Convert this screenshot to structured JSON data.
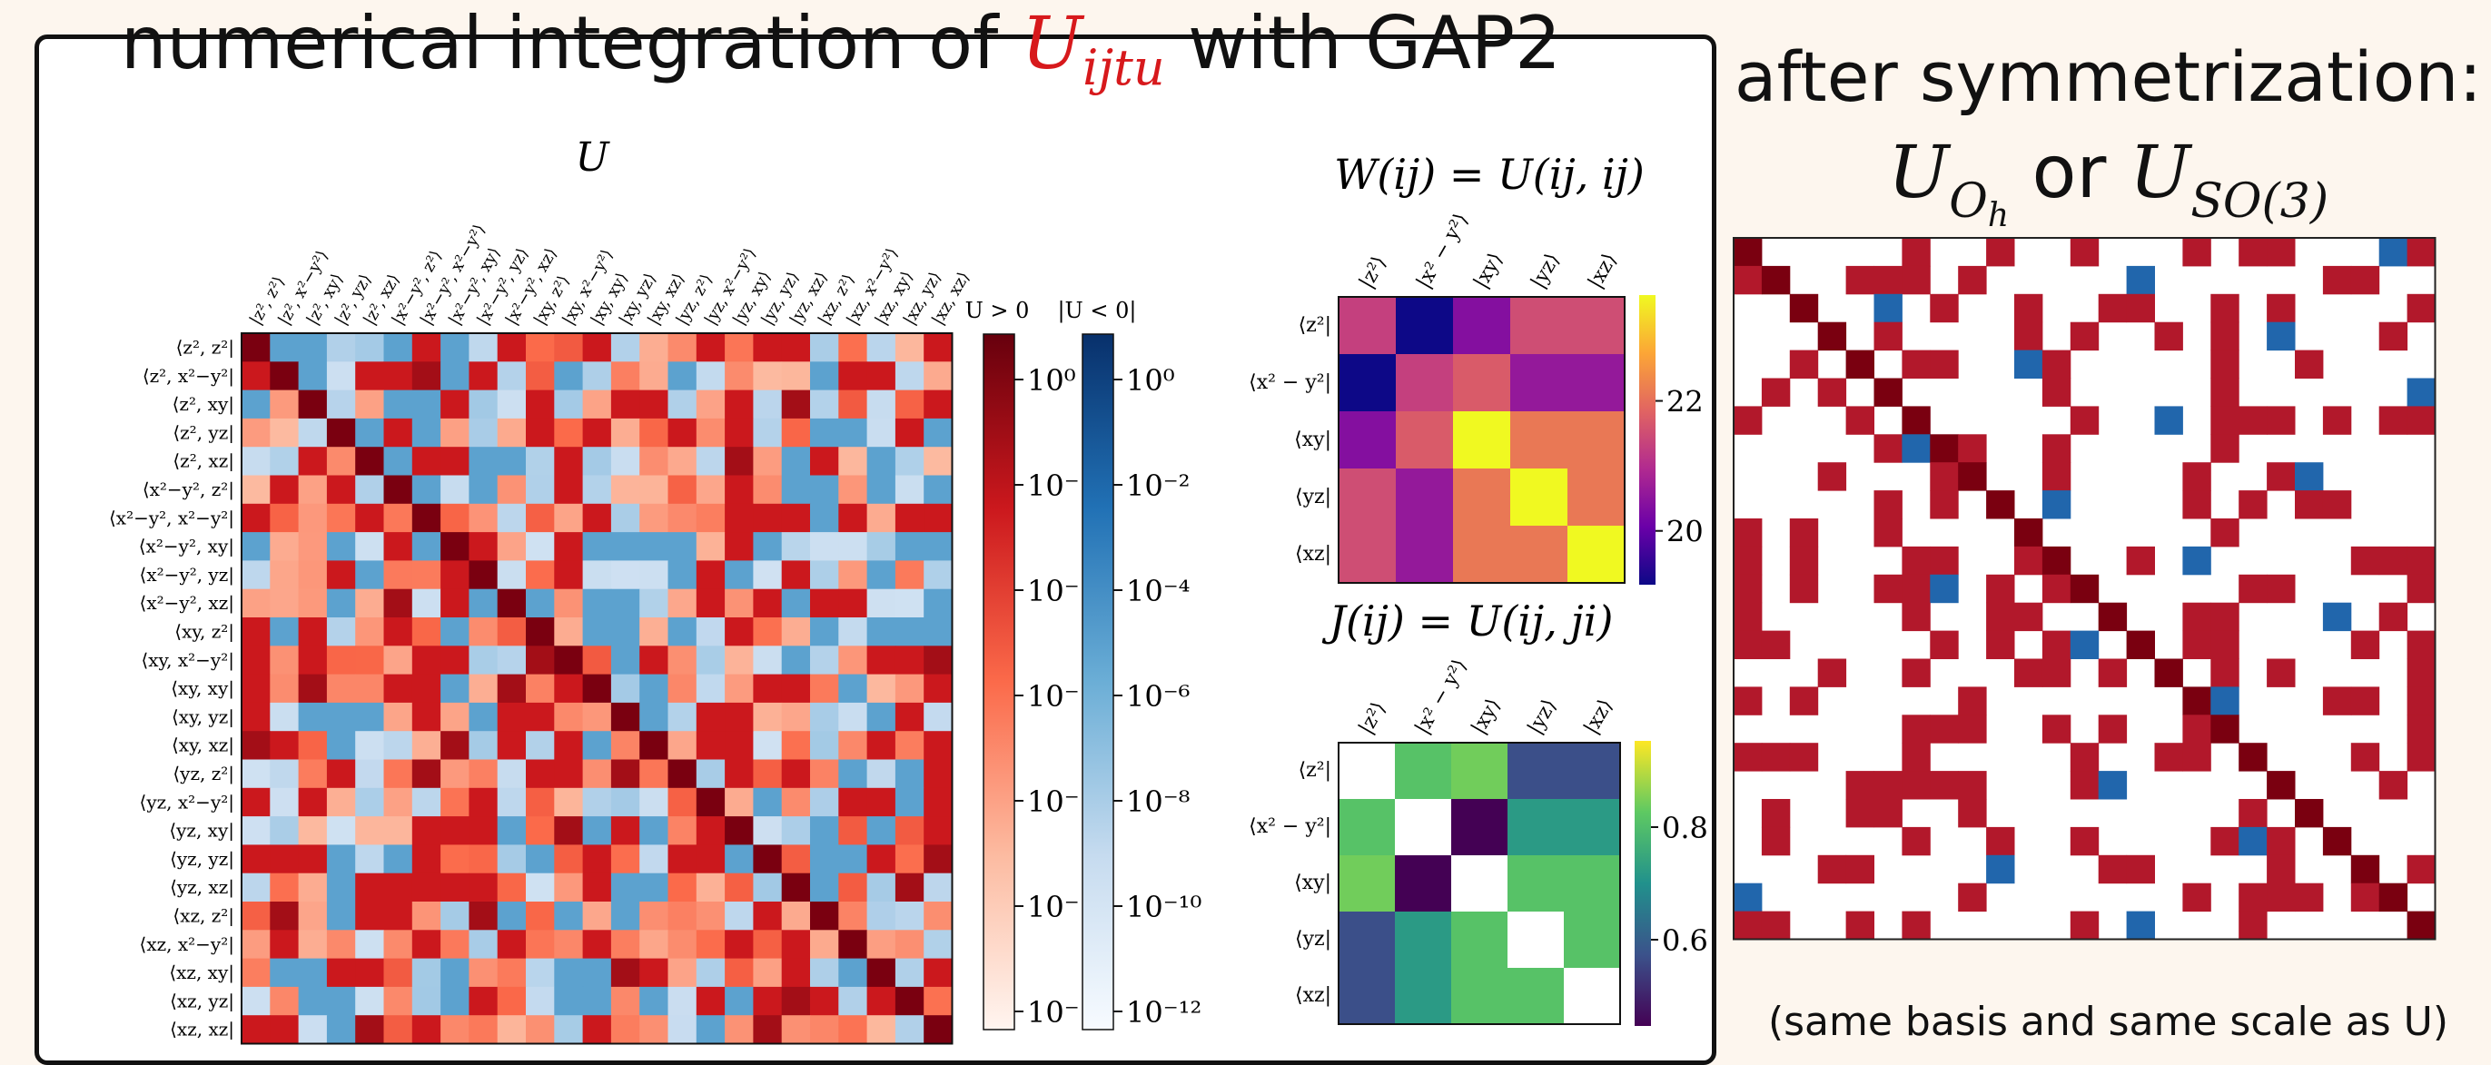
{
  "main_title": {
    "pre": "numerical integration of ",
    "sym": "U",
    "sub": "ijtu",
    "post": " with GAP2"
  },
  "right_title": {
    "line1": "after symmetrization:",
    "u1": "U",
    "sub1": "O",
    "sub1b": "h",
    "or": " or ",
    "u2": "U",
    "sub2": "SO(3)"
  },
  "right_caption": "(same basis and same scale as U)",
  "colors": {
    "pos_dark": "#67000d",
    "pos_mid": "#ef3b2c",
    "neg_dark": "#08306b",
    "neg_mid": "#4292c6"
  },
  "chart_data": [
    {
      "type": "heatmap",
      "title": "U",
      "scale": "log",
      "row_labels": [
        "⟨z², z²|",
        "⟨z², x²−y²|",
        "⟨z², xy|",
        "⟨z², yz|",
        "⟨z², xz|",
        "⟨x²−y², z²|",
        "⟨x²−y², x²−y²|",
        "⟨x²−y², xy|",
        "⟨x²−y², yz|",
        "⟨x²−y², xz|",
        "⟨xy, z²|",
        "⟨xy, x²−y²|",
        "⟨xy, xy|",
        "⟨xy, yz|",
        "⟨xy, xz|",
        "⟨yz, z²|",
        "⟨yz, x²−y²|",
        "⟨yz, xy|",
        "⟨yz, yz|",
        "⟨yz, xz|",
        "⟨xz, z²|",
        "⟨xz, x²−y²|",
        "⟨xz, xy|",
        "⟨xz, yz|",
        "⟨xz, xz|"
      ],
      "col_labels": [
        "|z², z²⟩",
        "|z², x²−y²⟩",
        "|z², xy⟩",
        "|z², yz⟩",
        "|z², xz⟩",
        "|x²−y², z²⟩",
        "|x²−y², x²−y²⟩",
        "|x²−y², xy⟩",
        "|x²−y², yz⟩",
        "|x²−y², xz⟩",
        "|xy, z²⟩",
        "|xy, x²−y²⟩",
        "|xy, xy⟩",
        "|xy, yz⟩",
        "|xy, xz⟩",
        "|yz, z²⟩",
        "|yz, x²−y²⟩",
        "|yz, xy⟩",
        "|yz, yz⟩",
        "|yz, xz⟩",
        "|xz, z²⟩",
        "|xz, x²−y²⟩",
        "|xz, xy⟩",
        "|xz, yz⟩",
        "|xz, xz⟩"
      ],
      "colorbars": [
        {
          "label": "U > 0",
          "ticks": [
            "10⁰",
            "10⁻",
            "10⁻",
            "10⁻",
            "10⁻",
            "10⁻",
            "10⁻"
          ]
        },
        {
          "label": "|U < 0|",
          "ticks": [
            "10⁰",
            "10⁻²",
            "10⁻⁴",
            "10⁻⁶",
            "10⁻⁸",
            "10⁻¹⁰",
            "10⁻¹²"
          ]
        }
      ]
    },
    {
      "type": "heatmap",
      "title": "W(ij) = U(ij, ij)",
      "labels": [
        "z²",
        "x² − y²",
        "xy",
        "yz",
        "xz"
      ],
      "values": [
        [
          21.3,
          19.2,
          20.4,
          21.5,
          21.5
        ],
        [
          19.2,
          21.3,
          21.7,
          20.6,
          20.6
        ],
        [
          20.4,
          21.7,
          23.6,
          22.1,
          22.1
        ],
        [
          21.5,
          20.6,
          22.1,
          23.6,
          22.1
        ],
        [
          21.5,
          20.6,
          22.1,
          22.1,
          23.6
        ]
      ],
      "colorbar": {
        "min": 19.2,
        "max": 23.6,
        "ticks": [
          20,
          22
        ],
        "colormap": "plasma"
      }
    },
    {
      "type": "heatmap",
      "title": "J(ij) = U(ij, ji)",
      "labels": [
        "z²",
        "x² − y²",
        "xy",
        "yz",
        "xz"
      ],
      "values": [
        [
          null,
          0.81,
          0.84,
          0.57,
          0.57
        ],
        [
          0.81,
          null,
          0.45,
          0.72,
          0.72
        ],
        [
          0.84,
          0.45,
          null,
          0.81,
          0.81
        ],
        [
          0.57,
          0.72,
          0.81,
          null,
          0.81
        ],
        [
          0.57,
          0.72,
          0.81,
          0.81,
          null
        ]
      ],
      "colorbar": {
        "min": 0.45,
        "max": 0.95,
        "ticks": [
          0.6,
          0.8
        ],
        "colormap": "viridis"
      }
    },
    {
      "type": "heatmap",
      "title": "U_Oh or U_SO(3)",
      "note": "symmetrized U; same basis and same scale as U"
    }
  ]
}
